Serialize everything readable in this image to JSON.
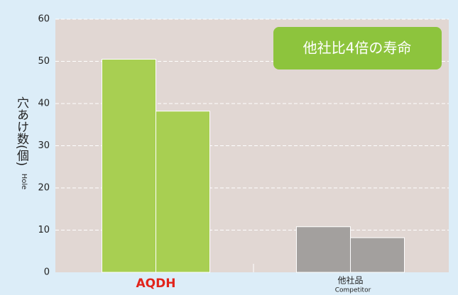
{
  "chart_data": {
    "type": "grouped-bar",
    "categories": [
      "AQDH",
      "他社品"
    ],
    "competitor_label_en": "Competitor",
    "values": [
      [
        50.5,
        38.2
      ],
      [
        10.8,
        8.2
      ]
    ],
    "colors": [
      "#a8cf52",
      "#a3a09e"
    ],
    "category_label_colors": [
      "#e2231a",
      "#222222"
    ],
    "ylabel": "穴あけ数(個)",
    "ylabel_en": "Hole",
    "annotation": "他社比4倍の寿命",
    "ylim": [
      0,
      60
    ],
    "yticks": [
      0,
      10,
      20,
      30,
      40,
      50,
      60
    ],
    "grid": true
  }
}
